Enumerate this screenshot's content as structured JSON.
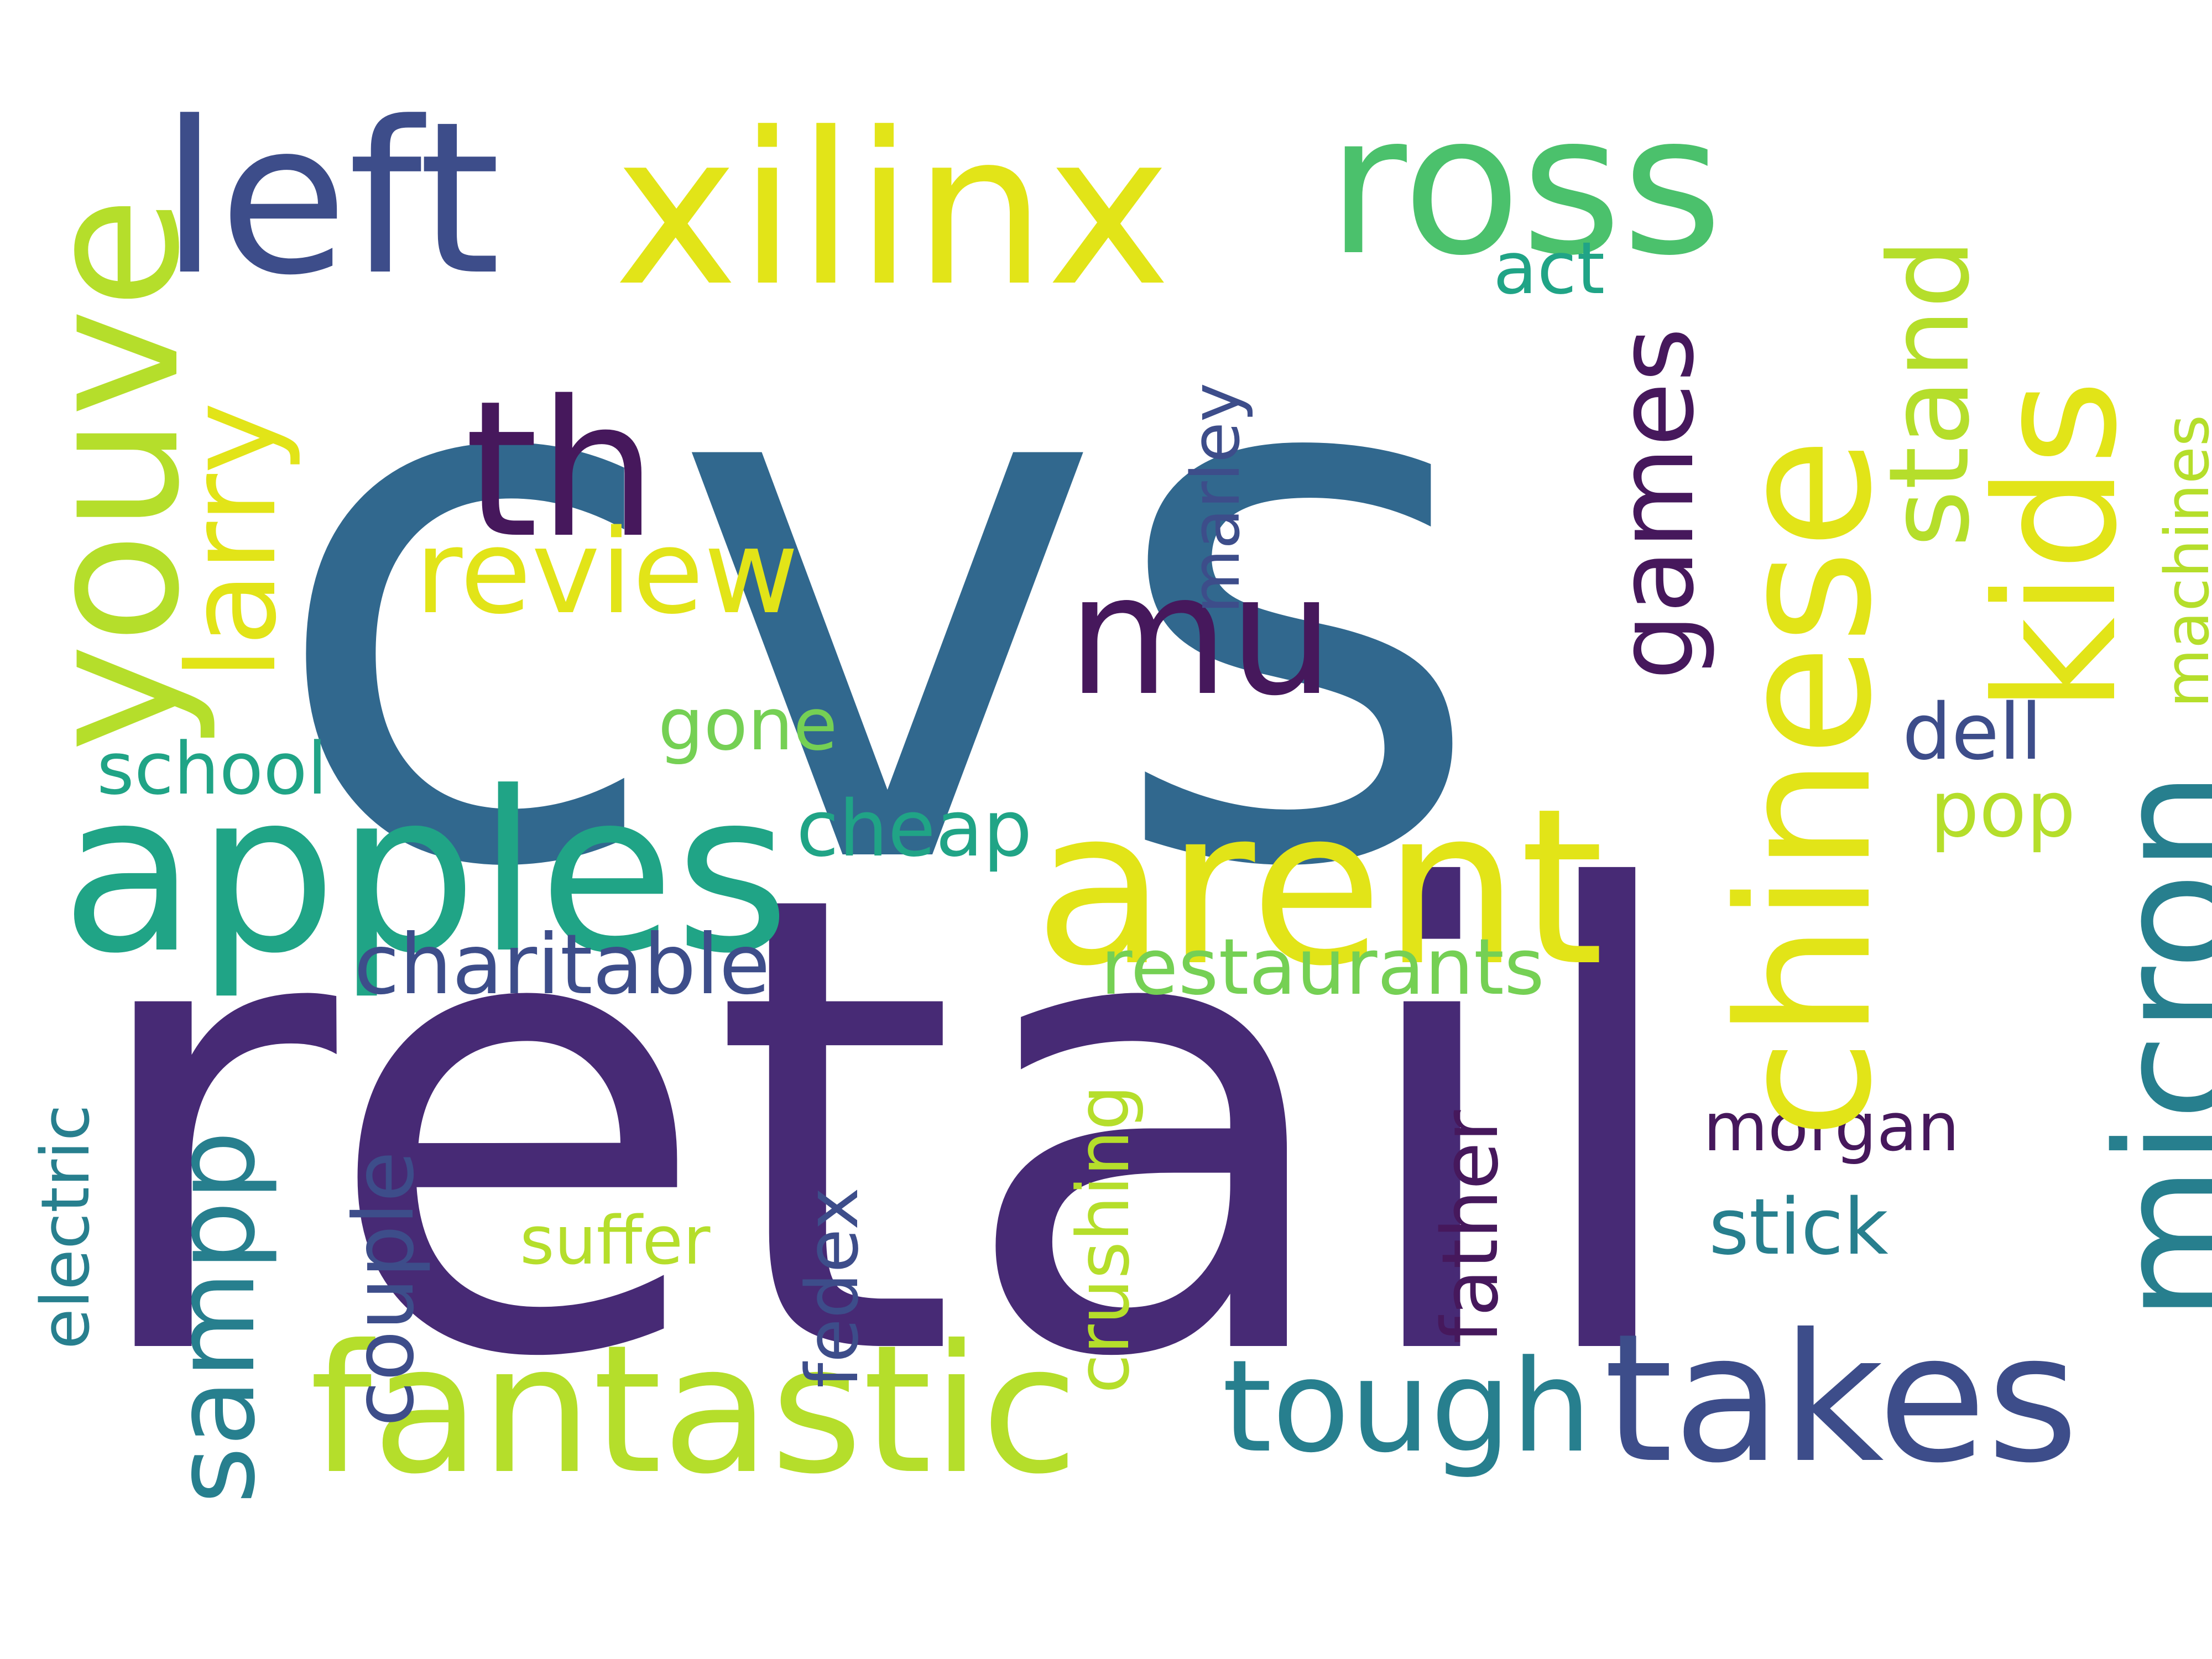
{
  "colors": {
    "background": "#ffffff",
    "dark_purple": "#472a75",
    "deep_purple": "#46185c",
    "indigo": "#3d4d8a",
    "slate_blue": "#31688e",
    "teal": "#277f8e",
    "green_teal": "#20a486",
    "green": "#4bc16c",
    "light_green": "#75d054",
    "lime": "#b5de2b",
    "yellow": "#e2e418"
  },
  "words": {
    "cvs": "cvs",
    "retail": "retail",
    "chinese": "chinese",
    "apples": "apples",
    "arent": "arent",
    "xilinx": "xilinx",
    "left": "left",
    "ross": "ross",
    "youve": "youve",
    "kids": "kids",
    "micron": "micron",
    "fantastic": "fantastic",
    "takes": "takes",
    "th": "th",
    "mu": "mu",
    "tough": "tough",
    "larry": "larry",
    "stand": "stand",
    "review": "review",
    "sampp": "sampp",
    "games": "games",
    "charitable": "charitable",
    "restaurants": "restaurants",
    "couple": "couple",
    "crushing": "crushing",
    "marley": "marley",
    "father": "father",
    "fedex": "fedex",
    "electric": "electric",
    "machines": "machines",
    "school": "school",
    "gone": "gone",
    "cheap": "cheap",
    "dell": "dell",
    "pop": "pop",
    "act": "act",
    "morgan": "morgan",
    "stick": "stick",
    "suffer": "suffer"
  }
}
